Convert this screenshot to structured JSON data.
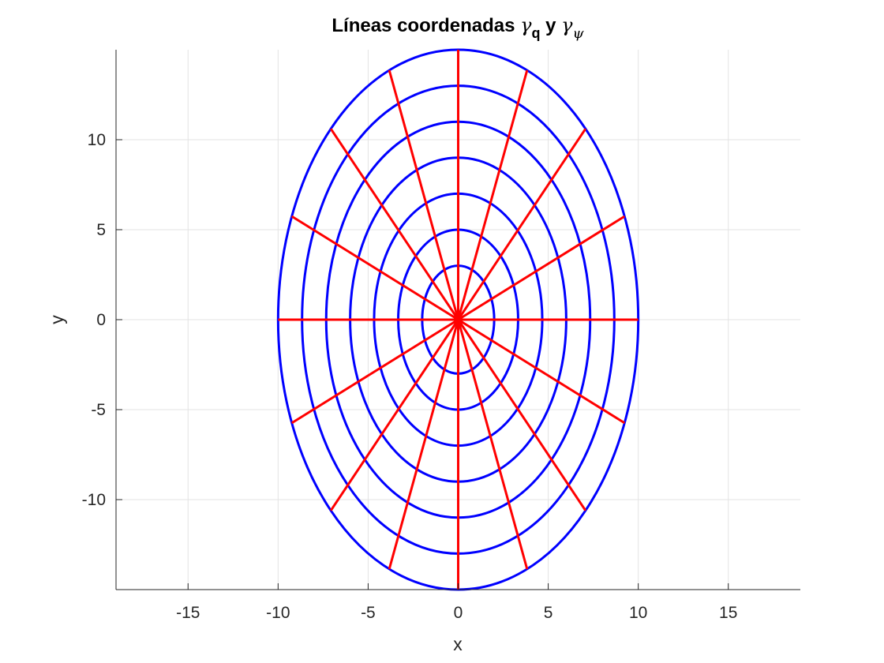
{
  "chart_data": {
    "type": "line",
    "title": {
      "prefix": "Líneas coordenadas ",
      "gamma1": "γ",
      "sub1": "q",
      "middle": " y ",
      "gamma2": "γ",
      "sub2": "ψ"
    },
    "xlabel": "x",
    "ylabel": "y",
    "xlim": [
      -19,
      19
    ],
    "ylim": [
      -15,
      15
    ],
    "xticks": [
      -15,
      -10,
      -5,
      0,
      5,
      10,
      15
    ],
    "yticks": [
      -10,
      -5,
      0,
      5,
      10
    ],
    "xtick_labels": [
      "-15",
      "-10",
      "-5",
      "0",
      "5",
      "10",
      "15"
    ],
    "ytick_labels": [
      "-10",
      "-5",
      "0",
      "5",
      "10"
    ],
    "grid": true,
    "aspect": "equal",
    "colors": {
      "ellipses": "#0000ff",
      "rays": "#ff0000",
      "grid": "#e3e3e3",
      "axes": "#262626"
    },
    "ellipses": [
      {
        "a": 2.0,
        "b": 3.0
      },
      {
        "a": 3.33,
        "b": 5.0
      },
      {
        "a": 4.67,
        "b": 7.0
      },
      {
        "a": 6.0,
        "b": 9.0
      },
      {
        "a": 7.33,
        "b": 11.0
      },
      {
        "a": 8.67,
        "b": 13.0
      },
      {
        "a": 10.0,
        "b": 15.0
      }
    ],
    "rays": {
      "count": 16,
      "angle_step_deg": 22.5,
      "outer_a": 10.0,
      "outer_b": 15.0
    }
  }
}
